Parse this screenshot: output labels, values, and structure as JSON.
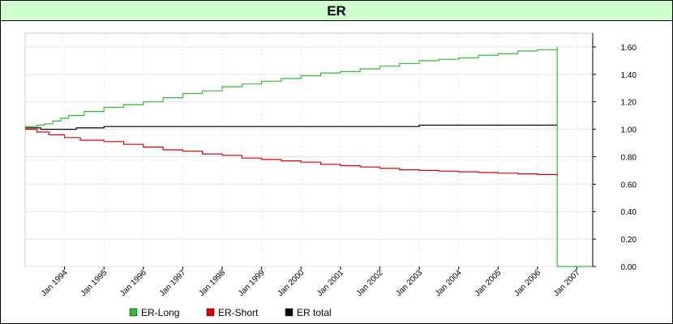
{
  "title": "ER",
  "colors": {
    "long": "#33bb33",
    "short": "#dd0000",
    "total": "#000000",
    "title_bg": "#ccffcc"
  },
  "chart_data": {
    "type": "line",
    "title": "ER",
    "xlabel": "",
    "ylabel": "",
    "xlim": [
      1993.0,
      2007.4
    ],
    "ylim": [
      0,
      1.7
    ],
    "grid": true,
    "legend_position": "bottom",
    "x_ticks": [
      {
        "label": "Jan 1994",
        "x": 1994
      },
      {
        "label": "Jan 1995",
        "x": 1995
      },
      {
        "label": "Jan 1996",
        "x": 1996
      },
      {
        "label": "Jan 1997",
        "x": 1997
      },
      {
        "label": "Jan 1998",
        "x": 1998
      },
      {
        "label": "Jan 1999",
        "x": 1999
      },
      {
        "label": "Jan 2000",
        "x": 2000
      },
      {
        "label": "Jan 2001",
        "x": 2001
      },
      {
        "label": "Jan 2002",
        "x": 2002
      },
      {
        "label": "Jan 2003",
        "x": 2003
      },
      {
        "label": "Jan 2004",
        "x": 2004
      },
      {
        "label": "Jan 2005",
        "x": 2005
      },
      {
        "label": "Jan 2006",
        "x": 2006
      },
      {
        "label": "Jan 2007",
        "x": 2007
      }
    ],
    "y_ticks": [
      "0.00",
      "0.20",
      "0.40",
      "0.60",
      "0.80",
      "1.00",
      "1.20",
      "1.40",
      "1.60"
    ],
    "series": [
      {
        "name": "ER-Long",
        "color": "#33bb33",
        "step": true,
        "x": [
          1993.0,
          1993.3,
          1993.5,
          1993.7,
          1993.9,
          1994.1,
          1994.5,
          1995.0,
          1995.5,
          1996.0,
          1996.5,
          1997.0,
          1997.5,
          1998.0,
          1998.5,
          1999.0,
          1999.5,
          2000.0,
          2000.5,
          2001.0,
          2001.5,
          2002.0,
          2002.5,
          2003.0,
          2003.5,
          2004.0,
          2004.5,
          2005.0,
          2005.5,
          2006.0,
          2006.5,
          2006.5,
          2007.4
        ],
        "y": [
          1.02,
          1.03,
          1.04,
          1.06,
          1.08,
          1.1,
          1.13,
          1.16,
          1.18,
          1.2,
          1.23,
          1.26,
          1.28,
          1.31,
          1.33,
          1.35,
          1.37,
          1.39,
          1.41,
          1.42,
          1.44,
          1.46,
          1.48,
          1.5,
          1.51,
          1.52,
          1.54,
          1.55,
          1.57,
          1.58,
          1.6,
          0.0,
          0.0
        ]
      },
      {
        "name": "ER-Short",
        "color": "#dd0000",
        "step": true,
        "x": [
          1993.0,
          1993.3,
          1993.6,
          1994.0,
          1994.4,
          1995.0,
          1995.5,
          1996.0,
          1996.5,
          1997.0,
          1997.5,
          1998.0,
          1998.5,
          1999.0,
          1999.5,
          2000.0,
          2000.5,
          2001.0,
          2001.5,
          2002.0,
          2002.5,
          2003.0,
          2003.5,
          2004.0,
          2004.5,
          2005.0,
          2005.5,
          2006.0,
          2006.5
        ],
        "y": [
          1.0,
          0.98,
          0.96,
          0.94,
          0.92,
          0.91,
          0.89,
          0.87,
          0.85,
          0.84,
          0.82,
          0.81,
          0.79,
          0.78,
          0.77,
          0.76,
          0.745,
          0.735,
          0.725,
          0.715,
          0.705,
          0.7,
          0.695,
          0.69,
          0.685,
          0.68,
          0.675,
          0.67,
          0.66
        ]
      },
      {
        "name": "ER total",
        "color": "#000000",
        "step": true,
        "x": [
          1993.0,
          1993.4,
          1993.8,
          1994.3,
          1995.0,
          1996.0,
          1997.0,
          1998.0,
          1999.0,
          2000.0,
          2001.0,
          2002.0,
          2003.0,
          2004.0,
          2005.0,
          2006.0,
          2006.5
        ],
        "y": [
          1.01,
          1.0,
          1.0,
          1.01,
          1.02,
          1.02,
          1.02,
          1.02,
          1.02,
          1.02,
          1.02,
          1.02,
          1.03,
          1.03,
          1.03,
          1.03,
          1.03
        ]
      }
    ]
  }
}
